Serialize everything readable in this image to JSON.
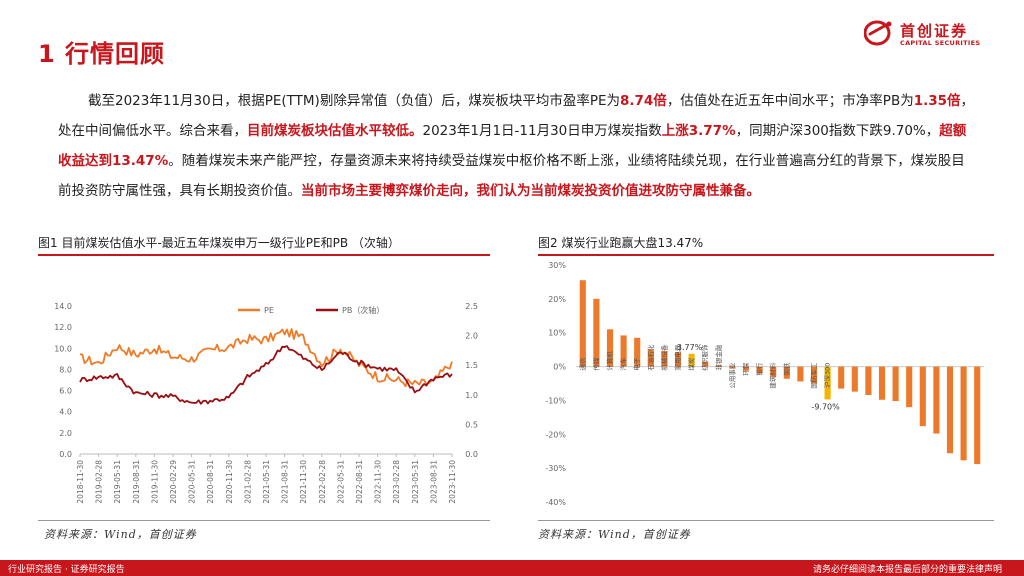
{
  "page": {
    "title": "1 行情回顾"
  },
  "logo": {
    "cn": "首创证券",
    "en": "CAPITAL SECURITIES"
  },
  "paragraph": [
    {
      "t": "截至2023年11月30日，根据PE(TTM)剔除异常值（负值）后，煤炭板块平均市盈率PE为",
      "b": false
    },
    {
      "t": "8.74倍",
      "b": true
    },
    {
      "t": "，估值处在近五年中间水平；市净率PB为",
      "b": false
    },
    {
      "t": "1.35倍",
      "b": true
    },
    {
      "t": "，处在中间偏低水平。综合来看，",
      "b": false
    },
    {
      "t": "目前煤炭板块估值水平较低。",
      "b": true
    },
    {
      "t": "2023年1月1日-11月30日申万煤炭指数",
      "b": false
    },
    {
      "t": "上涨3.77%",
      "b": true
    },
    {
      "t": "，同期沪深300指数下跌9.70%，",
      "b": false
    },
    {
      "t": "超额收益达到13.47%",
      "b": true
    },
    {
      "t": "。随着煤炭未来产能严控，存量资源未来将持续受益煤炭中枢价格不断上涨，业绩将陆续兑现，在行业普遍高分红的背景下，煤炭股目前投资防守属性强，具有长期投资价值。",
      "b": false
    },
    {
      "t": "当前市场主要博弈煤价走向，我们认为当前煤炭投资价值进攻防守属性兼备。",
      "b": true
    }
  ],
  "figure1": {
    "title": "图1 目前煤炭估值水平-最近五年煤炭申万一级行业PE和PB （次轴）",
    "source": "资料来源：Wind，首创证券"
  },
  "figure2": {
    "title": "图2 煤炭行业跑赢大盘13.47%",
    "source": "资料来源：Wind，首创证券"
  },
  "footer": {
    "left": "行业研究报告 · 证券研究报告",
    "right": "请务必仔细阅读本报告最后部分的重要法律声明"
  },
  "colors": {
    "brand_red": "#c8161d",
    "pe_orange": "#f07a26",
    "pb_darkred": "#9b0d12",
    "bar_orange": "#ec7a2a",
    "bar_yellow": "#f5b400"
  },
  "chart_data": [
    {
      "type": "line",
      "x": [
        "2018-11-30",
        "2019-02-28",
        "2019-05-31",
        "2019-08-31",
        "2019-11-30",
        "2020-02-29",
        "2020-05-31",
        "2020-08-31",
        "2020-11-30",
        "2021-02-28",
        "2021-05-31",
        "2021-08-31",
        "2021-11-30",
        "2022-02-28",
        "2022-05-31",
        "2022-08-31",
        "2022-11-30",
        "2023-02-28",
        "2023-05-31",
        "2023-08-31",
        "2023-11-30"
      ],
      "series": [
        {
          "name": "PE",
          "axis": "left",
          "values": [
            9.1,
            8.6,
            10.2,
            9.4,
            10.0,
            9.2,
            9.0,
            9.8,
            10.1,
            10.9,
            10.8,
            11.6,
            11.0,
            8.6,
            10.0,
            8.5,
            7.3,
            7.0,
            6.6,
            6.8,
            8.74
          ]
        },
        {
          "name": "PB（次轴）",
          "axis": "right",
          "values": [
            1.25,
            1.3,
            1.32,
            1.03,
            1.0,
            0.97,
            0.87,
            0.9,
            0.95,
            1.3,
            1.5,
            1.85,
            1.62,
            1.42,
            1.73,
            1.55,
            1.45,
            1.42,
            1.05,
            1.28,
            1.35
          ]
        }
      ],
      "yticks_left": [
        "0.0",
        "2.0",
        "4.0",
        "6.0",
        "8.0",
        "10.0",
        "12.0",
        "14.0"
      ],
      "yticks_right": [
        "0.0",
        "0.5",
        "1.0",
        "1.5",
        "2.0",
        "2.5"
      ],
      "ylim": [
        0,
        14
      ],
      "ylim_right": [
        0,
        2.5
      ],
      "legend": "top-center"
    },
    {
      "type": "bar",
      "categories": [
        "通信",
        "传媒",
        "计算机",
        "汽车",
        "电子",
        "石油石化",
        "机械设备",
        "家用电器",
        "煤炭",
        "纺织服饰",
        "非银金融",
        "公用事业",
        "环保",
        "银行",
        "建筑材料",
        "钢铁",
        "",
        "国防军工",
        "沪深300",
        "",
        "",
        "",
        "",
        "",
        "",
        "",
        "",
        "",
        "",
        ""
      ],
      "values": [
        25.5,
        20.0,
        11.0,
        9.2,
        8.5,
        5.0,
        4.6,
        4.2,
        3.77,
        1.4,
        0.5,
        -0.6,
        -1.2,
        -2.0,
        -3.0,
        -3.6,
        -4.4,
        -5.0,
        -9.7,
        -6.5,
        -7.4,
        -8.4,
        -9.8,
        -10.2,
        -12.0,
        -17.6,
        -19.8,
        -25.6,
        -27.7,
        -28.8
      ],
      "highlight": {
        "煤炭": "3.77%",
        "沪深300": "-9.70%"
      },
      "yticks": [
        "30%",
        "20%",
        "10%",
        "0%",
        "-10%",
        "-20%",
        "-30%",
        "-40%"
      ],
      "ylim": [
        -40,
        30
      ]
    }
  ]
}
